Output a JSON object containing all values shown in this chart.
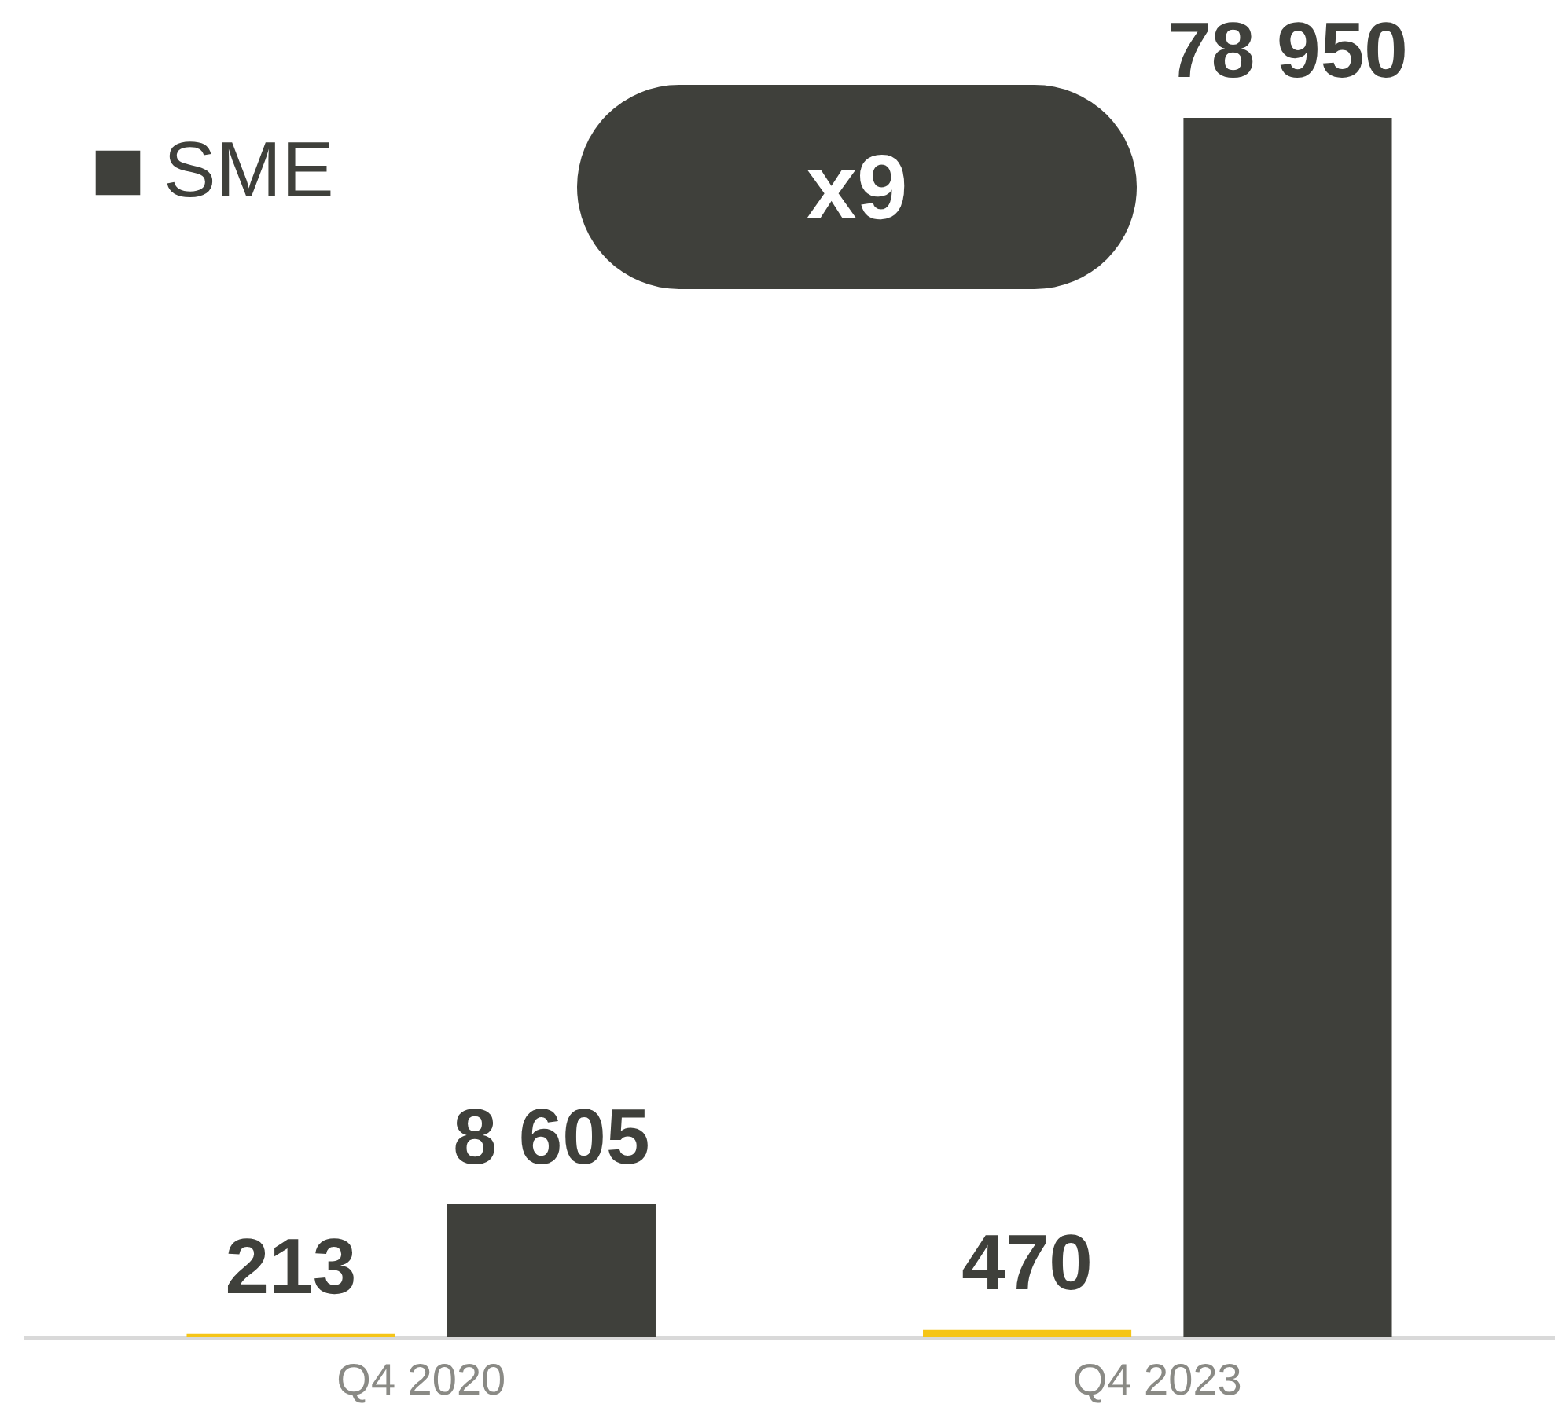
{
  "chart_data": {
    "type": "bar",
    "categories": [
      "Q4 2020",
      "Q4 2023"
    ],
    "series": [
      {
        "color": "#f5c518",
        "values": [
          213,
          470
        ]
      },
      {
        "name": "SME",
        "color": "#3f403b",
        "values": [
          8605,
          78950
        ]
      }
    ],
    "data_labels": true,
    "legend": "top left",
    "grid": false,
    "tick_labels": "x",
    "annotations": [
      "x9"
    ]
  }
}
